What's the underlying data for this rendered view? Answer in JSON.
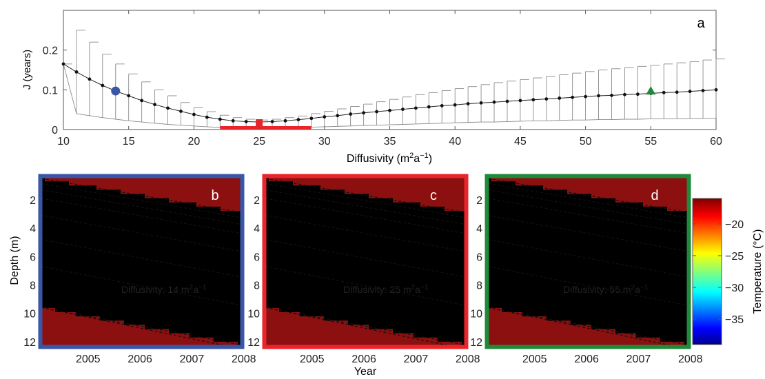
{
  "chart_data": [
    {
      "id": "a",
      "type": "line",
      "panel_label": "a",
      "xlabel_main": "Diffusivity (m",
      "xlabel_sup1": "2",
      "xlabel_mid": "a",
      "xlabel_sup2": "−1",
      "xlabel_end": ")",
      "ylabel": "J (years)",
      "xlim": [
        10,
        60
      ],
      "ylim": [
        0,
        0.3
      ],
      "xticks": [
        10,
        15,
        20,
        25,
        30,
        35,
        40,
        45,
        50,
        55,
        60
      ],
      "yticks": [
        0,
        0.1,
        0.2
      ],
      "ytick_labels": [
        "0",
        "0.1",
        "0.2"
      ],
      "series": [
        {
          "x": [
            10,
            11,
            12,
            13,
            14,
            15,
            16,
            17,
            18,
            19,
            20,
            21,
            22,
            23,
            24,
            25,
            26,
            27,
            28,
            29,
            30,
            31,
            32,
            33,
            34,
            35,
            36,
            37,
            38,
            39,
            40,
            41,
            42,
            43,
            44,
            45,
            46,
            47,
            48,
            49,
            50,
            51,
            52,
            53,
            54,
            55,
            56,
            57,
            58,
            59,
            60
          ],
          "y": [
            0.165,
            0.145,
            0.127,
            0.111,
            0.097,
            0.085,
            0.073,
            0.063,
            0.054,
            0.046,
            0.038,
            0.031,
            0.026,
            0.022,
            0.02,
            0.019,
            0.02,
            0.022,
            0.025,
            0.028,
            0.032,
            0.035,
            0.039,
            0.042,
            0.045,
            0.048,
            0.051,
            0.054,
            0.057,
            0.06,
            0.062,
            0.065,
            0.067,
            0.069,
            0.071,
            0.073,
            0.075,
            0.077,
            0.079,
            0.081,
            0.083,
            0.085,
            0.086,
            0.088,
            0.089,
            0.091,
            0.093,
            0.094,
            0.096,
            0.098,
            0.1
          ],
          "err_high": [
            0.165,
            0.25,
            0.22,
            0.19,
            0.165,
            0.14,
            0.12,
            0.1,
            0.085,
            0.068,
            0.055,
            0.045,
            0.036,
            0.03,
            0.026,
            0.024,
            0.026,
            0.03,
            0.034,
            0.04,
            0.046,
            0.052,
            0.058,
            0.064,
            0.07,
            0.076,
            0.082,
            0.088,
            0.093,
            0.098,
            0.103,
            0.108,
            0.113,
            0.118,
            0.122,
            0.126,
            0.13,
            0.134,
            0.138,
            0.142,
            0.146,
            0.15,
            0.153,
            0.156,
            0.159,
            0.162,
            0.165,
            0.168,
            0.171,
            0.175,
            0.178
          ],
          "err_low": [
            0.165,
            0.04,
            0.035,
            0.03,
            0.026,
            0.022,
            0.019,
            0.016,
            0.013,
            0.011,
            0.009,
            0.007,
            0.005,
            0.004,
            0.004,
            0.004,
            0.004,
            0.005,
            0.005,
            0.006,
            0.007,
            0.008,
            0.009,
            0.01,
            0.011,
            0.012,
            0.013,
            0.014,
            0.015,
            0.016,
            0.017,
            0.018,
            0.019,
            0.019,
            0.02,
            0.021,
            0.022,
            0.022,
            0.023,
            0.024,
            0.024,
            0.025,
            0.025,
            0.026,
            0.026,
            0.027,
            0.027,
            0.027,
            0.028,
            0.028,
            0.029
          ]
        }
      ],
      "markers": [
        {
          "shape": "circle",
          "x": 14,
          "y": 0.097,
          "color": "#3a56a6"
        },
        {
          "shape": "bar",
          "x": 25,
          "y": 0.012,
          "color": "#e8252a",
          "range": [
            22,
            29
          ]
        },
        {
          "shape": "triangle",
          "x": 55,
          "y": 0.097,
          "color": "#1f8a3a"
        }
      ]
    },
    {
      "id": "b",
      "type": "heatmap",
      "panel_label": "b",
      "frame_color": "#3a56a6",
      "annotation_pre": "Diffusivity: 14 m",
      "annotation_sup1": "2",
      "annotation_mid": "a",
      "annotation_sup2": "−1",
      "ylabel": "Depth (m)",
      "yticks": [
        2,
        4,
        6,
        8,
        10,
        12
      ],
      "xticks": [
        "2005",
        "2006",
        "2007",
        "2008"
      ],
      "xlim": [
        2004.6,
        2008.45
      ],
      "ylim": [
        12.3,
        0.4
      ],
      "amplitude": 0.55
    },
    {
      "id": "c",
      "type": "heatmap",
      "panel_label": "c",
      "frame_color": "#e8252a",
      "annotation_pre": "Diffusivity: 25 m",
      "annotation_sup1": "2",
      "annotation_mid": "a",
      "annotation_sup2": "−1",
      "yticks": [
        2,
        4,
        6,
        8,
        10,
        12
      ],
      "xticks": [
        "2005",
        "2006",
        "2007",
        "2008"
      ],
      "xlim": [
        2004.6,
        2008.45
      ],
      "ylim": [
        12.3,
        0.4
      ],
      "xlabel": "Year",
      "amplitude": 0.75
    },
    {
      "id": "d",
      "type": "heatmap",
      "panel_label": "d",
      "frame_color": "#1f8a3a",
      "annotation_pre": "Diffusivity: 55 m",
      "annotation_sup1": "2",
      "annotation_mid": "a",
      "annotation_sup2": "−1",
      "yticks": [
        2,
        4,
        6,
        8,
        10,
        12
      ],
      "xticks": [
        "2005",
        "2006",
        "2007",
        "2008"
      ],
      "xlim": [
        2004.6,
        2008.45
      ],
      "ylim": [
        12.3,
        0.4
      ],
      "amplitude": 1.0
    }
  ],
  "colorbar": {
    "label": "Temperature (°C)",
    "ticks": [
      -20,
      -25,
      -30,
      -35
    ],
    "tick_labels": [
      "−20",
      "−25",
      "−30",
      "−35"
    ],
    "range": [
      -39,
      -16
    ]
  }
}
